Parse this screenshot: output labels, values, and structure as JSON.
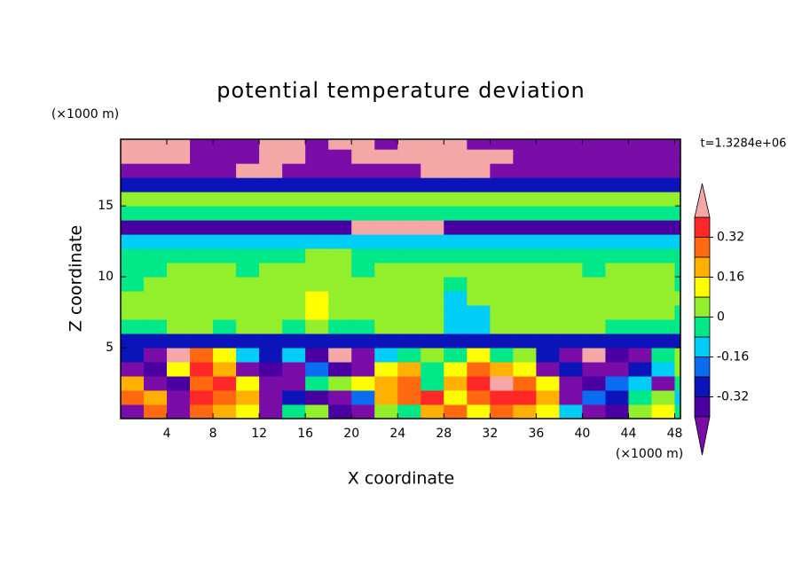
{
  "chart_data": {
    "type": "contour",
    "title": "potential temperature deviation",
    "xlabel": "X coordinate",
    "ylabel": "Z coordinate",
    "xunit": "(×1000 m)",
    "yunit": "(×1000 m)",
    "annotation": "t=1.3284e+06",
    "xlim": [
      0,
      48.5
    ],
    "ylim": [
      0,
      19.7
    ],
    "xticks": [
      4,
      8,
      12,
      16,
      20,
      24,
      28,
      32,
      36,
      40,
      44,
      48
    ],
    "yticks": [
      5,
      10,
      15
    ],
    "x": [
      1,
      3,
      5,
      7,
      9,
      11,
      13,
      15,
      17,
      19,
      21,
      23,
      25,
      27,
      29,
      31,
      33,
      35,
      37,
      39,
      41,
      43,
      45,
      47,
      49
    ],
    "y": [
      0.5,
      1.5,
      2.5,
      3.5,
      4.5,
      5.5,
      6.5,
      7.5,
      8.5,
      9.5,
      10.5,
      11.5,
      12.5,
      13.5,
      14.5,
      15.5,
      16.5,
      17.5,
      18.5,
      19.5
    ],
    "levels": [
      -0.4,
      -0.32,
      -0.24,
      -0.16,
      -0.08,
      0,
      0.08,
      0.16,
      0.24,
      0.32,
      0.4
    ],
    "colors": [
      "#7a0ca8",
      "#4a00a0",
      "#0a14b8",
      "#0a6cf0",
      "#00cdf5",
      "#00e887",
      "#93ef2c",
      "#ffff00",
      "#ffb000",
      "#ff6a10",
      "#ff2828",
      "#f4a7a7"
    ],
    "colorbar_ticks": [
      0.32,
      0.16,
      0,
      -0.16,
      -0.32
    ],
    "z": [
      [
        -0.45,
        0.28,
        -0.45,
        0.28,
        0.2,
        0.12,
        -0.45,
        -0.04,
        0.04,
        -0.36,
        -0.45,
        0.04,
        -0.04,
        0.2,
        0.28,
        0.12,
        0.28,
        0.2,
        0.12,
        -0.12,
        -0.45,
        -0.36,
        0.04,
        0.12,
        -0.04
      ],
      [
        0.28,
        0.2,
        -0.45,
        0.36,
        0.28,
        0.2,
        -0.45,
        -0.28,
        -0.36,
        -0.45,
        -0.2,
        0.2,
        0.28,
        0.36,
        0.12,
        0.28,
        0.36,
        0.36,
        0.2,
        -0.45,
        -0.2,
        -0.28,
        -0.04,
        0.04,
        -0.12
      ],
      [
        0.2,
        -0.45,
        -0.36,
        0.28,
        0.36,
        0.12,
        -0.45,
        -0.45,
        -0.04,
        0.04,
        0.12,
        0.2,
        0.28,
        -0.04,
        0.2,
        0.36,
        0.45,
        0.28,
        0.12,
        -0.45,
        -0.36,
        -0.2,
        -0.12,
        -0.45,
        -0.04
      ],
      [
        -0.45,
        -0.36,
        0.12,
        0.36,
        0.2,
        -0.45,
        -0.36,
        -0.45,
        -0.2,
        -0.36,
        -0.45,
        0.12,
        0.2,
        -0.04,
        0.12,
        0.28,
        0.2,
        0.12,
        -0.45,
        -0.28,
        -0.45,
        -0.45,
        -0.28,
        -0.12,
        0.04
      ],
      [
        -0.28,
        -0.45,
        0.45,
        0.28,
        0.12,
        -0.12,
        -0.28,
        -0.12,
        -0.36,
        0.45,
        -0.45,
        -0.12,
        -0.04,
        0.04,
        -0.04,
        0.12,
        -0.04,
        0.04,
        -0.28,
        -0.45,
        0.45,
        -0.36,
        -0.45,
        -0.04,
        0.04
      ],
      [
        -0.28,
        -0.28,
        -0.28,
        -0.28,
        -0.28,
        -0.28,
        -0.28,
        -0.28,
        -0.28,
        -0.28,
        -0.28,
        -0.28,
        -0.28,
        -0.28,
        -0.28,
        -0.28,
        -0.28,
        -0.28,
        -0.28,
        -0.28,
        -0.28,
        -0.28,
        -0.28,
        -0.28,
        -0.28
      ],
      [
        -0.04,
        -0.04,
        0.04,
        0.04,
        -0.04,
        0.04,
        0.04,
        -0.04,
        0.04,
        -0.04,
        -0.04,
        0.04,
        0.04,
        0.04,
        -0.12,
        -0.12,
        0.04,
        0.04,
        0.04,
        0.04,
        0.04,
        -0.04,
        -0.04,
        -0.04,
        -0.04
      ],
      [
        0.04,
        0.04,
        0.04,
        0.04,
        0.04,
        0.04,
        0.04,
        0.04,
        0.12,
        0.04,
        0.04,
        0.04,
        0.04,
        0.04,
        -0.12,
        -0.12,
        0.04,
        0.04,
        0.04,
        0.04,
        0.04,
        0.04,
        0.04,
        0.04,
        -0.04
      ],
      [
        0.04,
        0.04,
        0.04,
        0.04,
        0.04,
        0.04,
        0.04,
        0.04,
        0.12,
        0.04,
        0.04,
        0.04,
        0.04,
        0.04,
        -0.12,
        0.04,
        0.04,
        0.04,
        0.04,
        0.04,
        0.04,
        0.04,
        0.04,
        0.04,
        0.04
      ],
      [
        -0.04,
        0.04,
        0.04,
        0.04,
        0.04,
        0.04,
        0.04,
        0.04,
        0.04,
        0.04,
        0.04,
        0.04,
        0.04,
        0.04,
        -0.04,
        0.04,
        0.04,
        0.04,
        0.04,
        0.04,
        0.04,
        0.04,
        0.04,
        0.04,
        -0.04
      ],
      [
        -0.04,
        -0.04,
        0.04,
        0.04,
        0.04,
        -0.04,
        0.04,
        0.04,
        0.04,
        0.04,
        -0.04,
        0.04,
        0.04,
        0.04,
        0.04,
        0.04,
        0.04,
        0.04,
        0.04,
        0.04,
        -0.04,
        0.04,
        0.04,
        0.04,
        -0.04
      ],
      [
        -0.04,
        -0.04,
        -0.04,
        -0.04,
        -0.04,
        -0.04,
        -0.04,
        -0.04,
        0.04,
        0.04,
        -0.04,
        -0.04,
        -0.04,
        -0.04,
        -0.04,
        -0.04,
        -0.04,
        -0.04,
        -0.04,
        -0.04,
        -0.04,
        -0.04,
        -0.04,
        -0.04,
        -0.04
      ],
      [
        -0.12,
        -0.12,
        -0.12,
        -0.12,
        -0.12,
        -0.12,
        -0.12,
        -0.12,
        -0.12,
        -0.12,
        -0.12,
        -0.12,
        -0.12,
        -0.12,
        -0.12,
        -0.12,
        -0.12,
        -0.12,
        -0.12,
        -0.12,
        -0.12,
        -0.12,
        -0.12,
        -0.12,
        -0.12
      ],
      [
        -0.36,
        -0.36,
        -0.36,
        -0.36,
        -0.36,
        -0.36,
        -0.36,
        -0.36,
        -0.36,
        -0.36,
        0.45,
        0.45,
        0.45,
        0.45,
        -0.36,
        -0.36,
        -0.36,
        -0.36,
        -0.36,
        -0.36,
        -0.36,
        -0.36,
        -0.36,
        -0.36,
        -0.36
      ],
      [
        -0.04,
        -0.04,
        -0.04,
        -0.04,
        -0.04,
        -0.04,
        -0.04,
        -0.04,
        -0.04,
        -0.04,
        -0.04,
        -0.04,
        -0.04,
        -0.04,
        -0.04,
        -0.04,
        -0.04,
        -0.04,
        -0.04,
        -0.04,
        -0.04,
        -0.04,
        -0.04,
        -0.04,
        -0.04
      ],
      [
        0.04,
        0.04,
        0.04,
        0.04,
        0.04,
        0.04,
        0.04,
        0.04,
        0.04,
        0.04,
        0.04,
        0.04,
        0.04,
        0.04,
        0.04,
        0.04,
        0.04,
        0.04,
        0.04,
        0.04,
        0.04,
        0.04,
        0.04,
        0.04,
        0.04
      ],
      [
        -0.28,
        -0.28,
        -0.28,
        -0.28,
        -0.28,
        -0.28,
        -0.28,
        -0.28,
        -0.28,
        -0.28,
        -0.28,
        -0.28,
        -0.28,
        -0.28,
        -0.28,
        -0.28,
        -0.28,
        -0.28,
        -0.28,
        -0.28,
        -0.28,
        -0.28,
        -0.28,
        -0.28,
        -0.28
      ],
      [
        -0.45,
        -0.45,
        -0.45,
        -0.45,
        -0.45,
        0.45,
        0.45,
        -0.45,
        -0.45,
        -0.45,
        -0.45,
        -0.45,
        -0.45,
        0.45,
        0.45,
        0.45,
        -0.45,
        -0.45,
        -0.45,
        -0.45,
        -0.45,
        -0.45,
        -0.45,
        -0.45,
        -0.45
      ],
      [
        0.45,
        0.45,
        0.45,
        -0.45,
        -0.45,
        -0.45,
        0.45,
        0.45,
        -0.45,
        -0.45,
        0.45,
        0.45,
        0.45,
        0.45,
        0.45,
        0.45,
        0.45,
        -0.45,
        -0.45,
        -0.45,
        -0.45,
        -0.45,
        -0.45,
        -0.45,
        -0.45
      ],
      [
        0.45,
        0.45,
        0.45,
        -0.45,
        -0.45,
        -0.45,
        0.45,
        0.45,
        -0.45,
        0.45,
        0.45,
        -0.45,
        0.45,
        0.45,
        0.45,
        -0.45,
        -0.45,
        -0.45,
        -0.45,
        -0.45,
        -0.45,
        -0.45,
        -0.45,
        -0.45,
        -0.45
      ]
    ]
  }
}
